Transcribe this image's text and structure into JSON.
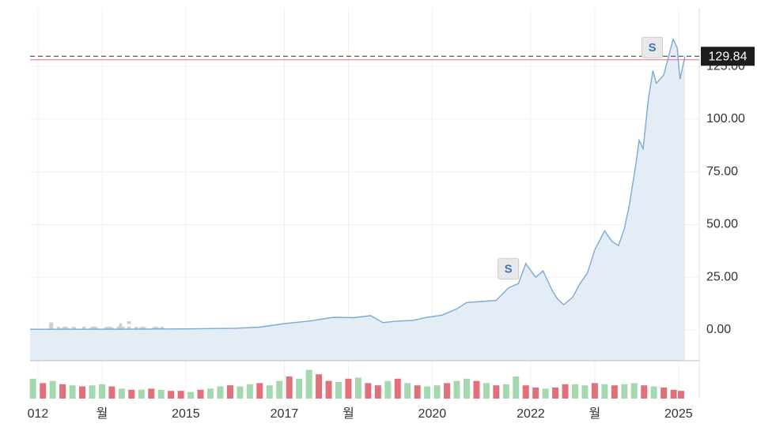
{
  "chart_data": {
    "type": "area",
    "x": [
      2011.84,
      2013,
      2014,
      2015,
      2016,
      2016.5,
      2017,
      2017.5,
      2018,
      2018.4,
      2018.75,
      2019,
      2019.3,
      2019.6,
      2019.9,
      2020.2,
      2020.5,
      2020.7,
      2021,
      2021.3,
      2021.55,
      2021.75,
      2021.9,
      2022.1,
      2022.25,
      2022.45,
      2022.55,
      2022.67,
      2022.85,
      2023.0,
      2023.15,
      2023.3,
      2023.5,
      2023.65,
      2023.78,
      2023.9,
      2024.0,
      2024.13,
      2024.2,
      2024.28,
      2024.39,
      2024.48,
      2024.55,
      2024.7,
      2024.89,
      2024.97,
      2025.03,
      2025.13
    ],
    "values": [
      0.3,
      0.3,
      0.35,
      0.5,
      0.8,
      1.3,
      3,
      4.2,
      6,
      5.8,
      6.8,
      3.5,
      4.2,
      4.5,
      6,
      7,
      10,
      13,
      13.5,
      14,
      20,
      22,
      31.5,
      25,
      28,
      18,
      14.5,
      12,
      15.5,
      22,
      27,
      38,
      47,
      42,
      40,
      48,
      59,
      78,
      90,
      86,
      110,
      123,
      117,
      121,
      138,
      134,
      119,
      129.84
    ],
    "value_labels": {
      "last": "129.84"
    },
    "color": "#7aaad6",
    "fill": "#e4ecf5",
    "prev_close": 128.2,
    "xlim": [
      2011.84,
      2025.42
    ],
    "xticks": [
      {
        "value": 2012,
        "label": "012"
      },
      {
        "value": 2013.3,
        "label": "월"
      },
      2015,
      2017,
      {
        "value": 2018.3,
        "label": "월"
      },
      2020,
      2022,
      {
        "value": 2023.3,
        "label": "월"
      },
      2025
    ],
    "ylim": [
      -14.6,
      152.8
    ],
    "yticks": [
      {
        "value": 0,
        "label": "0.00"
      },
      {
        "value": 25,
        "label": "25.00"
      },
      {
        "value": 50,
        "label": "50.00"
      },
      {
        "value": 75,
        "label": "75.00"
      },
      {
        "value": 100,
        "label": "100.00"
      },
      {
        "value": 125,
        "label": "125.00"
      }
    ],
    "grid": true,
    "annotations": [
      {
        "text": "S",
        "x": 2021.53,
        "y": 29
      },
      {
        "text": "S",
        "x": 2024.45,
        "y": 134
      }
    ],
    "watermark": [
      "Investing",
      ".com"
    ],
    "volume": {
      "up_color": "#a6d8b0",
      "down_color": "#e2707a",
      "vlim": [
        0,
        40
      ],
      "x": [
        2011.9,
        2012.1,
        2012.3,
        2012.5,
        2012.7,
        2012.9,
        2013.1,
        2013.3,
        2013.5,
        2013.7,
        2013.9,
        2014.1,
        2014.3,
        2014.5,
        2014.7,
        2014.9,
        2015.1,
        2015.3,
        2015.5,
        2015.7,
        2015.9,
        2016.1,
        2016.3,
        2016.5,
        2016.7,
        2016.9,
        2017.1,
        2017.3,
        2017.5,
        2017.7,
        2017.9,
        2018.1,
        2018.3,
        2018.5,
        2018.7,
        2018.9,
        2019.1,
        2019.3,
        2019.5,
        2019.7,
        2019.9,
        2020.1,
        2020.3,
        2020.5,
        2020.7,
        2020.9,
        2021.1,
        2021.3,
        2021.5,
        2021.7,
        2021.9,
        2022.1,
        2022.3,
        2022.5,
        2022.7,
        2022.9,
        2023.1,
        2023.3,
        2023.5,
        2023.7,
        2023.9,
        2024.1,
        2024.3,
        2024.5,
        2024.7,
        2024.9,
        2025.05
      ],
      "values": [
        18,
        14,
        16,
        13,
        12,
        11,
        12,
        13,
        11,
        9,
        8,
        8,
        9,
        8,
        7,
        7,
        6,
        8,
        9,
        11,
        12,
        11,
        13,
        14,
        12,
        16,
        20,
        18,
        26,
        22,
        16,
        15,
        18,
        19,
        14,
        12,
        16,
        18,
        14,
        12,
        11,
        12,
        14,
        16,
        18,
        16,
        14,
        12,
        13,
        20,
        12,
        10,
        9,
        10,
        13,
        13,
        12,
        14,
        13,
        12,
        13,
        14,
        12,
        11,
        10,
        8,
        7
      ],
      "up": [
        true,
        false,
        true,
        false,
        true,
        false,
        true,
        true,
        false,
        true,
        false,
        true,
        false,
        true,
        false,
        false,
        true,
        false,
        true,
        true,
        false,
        true,
        true,
        false,
        true,
        true,
        false,
        true,
        true,
        false,
        false,
        true,
        false,
        true,
        false,
        false,
        true,
        false,
        true,
        false,
        true,
        true,
        false,
        true,
        true,
        false,
        true,
        false,
        true,
        true,
        false,
        false,
        true,
        false,
        false,
        true,
        true,
        false,
        true,
        false,
        true,
        true,
        false,
        true,
        false,
        false,
        false
      ]
    }
  }
}
